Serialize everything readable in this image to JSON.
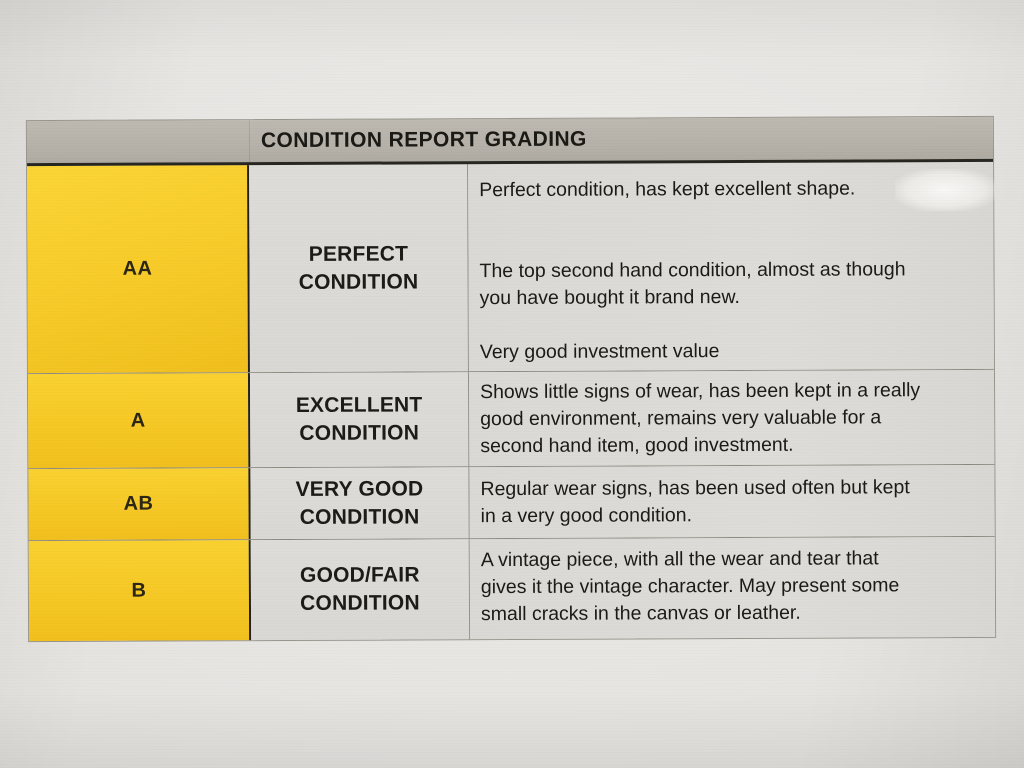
{
  "document": {
    "header": {
      "title": "CONDITION REPORT GRADING"
    },
    "grades": [
      {
        "code": "AA",
        "label": "PERFECT\nCONDITION",
        "description": "Perfect condition, has kept excellent shape.\n\n\nThe top second hand condition, almost as though\nyou have bought it brand new.\n\nVery good investment value"
      },
      {
        "code": "A",
        "label": "EXCELLENT\nCONDITION",
        "description": "Shows little signs of wear, has been kept in a really\ngood environment, remains very valuable for a\nsecond hand item, good investment."
      },
      {
        "code": "AB",
        "label": "VERY GOOD\nCONDITION",
        "description": "Regular wear signs, has been used often but kept\nin a very good condition."
      },
      {
        "code": "B",
        "label": "GOOD/FAIR\nCONDITION",
        "description": "A vintage piece, with all the wear and tear that\ngives it the vintage character. May present some\nsmall cracks in the canvas or leather."
      }
    ],
    "colors": {
      "grade_cell_yellow": "#f5c824",
      "header_gray": "#b4b0a8",
      "cell_gray": "#dcdad6",
      "paper": "#e6e4e1"
    }
  }
}
